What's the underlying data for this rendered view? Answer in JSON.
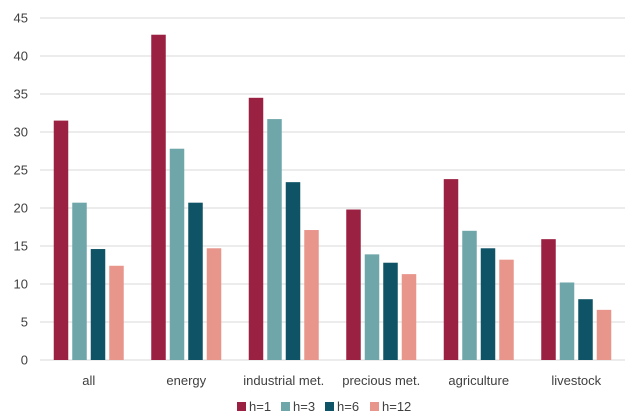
{
  "chart_data": {
    "type": "bar",
    "categories": [
      "all",
      "energy",
      "industrial met.",
      "precious met.",
      "agriculture",
      "livestock"
    ],
    "series": [
      {
        "name": "h=1",
        "color": "#9b2143",
        "values": [
          31.5,
          42.8,
          34.5,
          19.8,
          23.8,
          15.9
        ]
      },
      {
        "name": "h=3",
        "color": "#6fa6aa",
        "values": [
          20.7,
          27.8,
          31.7,
          13.9,
          17.0,
          10.2
        ]
      },
      {
        "name": "h=6",
        "color": "#0f5367",
        "values": [
          14.6,
          20.7,
          23.4,
          12.8,
          14.7,
          8.0
        ]
      },
      {
        "name": "h=12",
        "color": "#e8958c",
        "values": [
          12.4,
          14.7,
          17.1,
          11.3,
          13.2,
          6.6
        ]
      }
    ],
    "title": "",
    "xlabel": "",
    "ylabel": "",
    "ylim": [
      0,
      45
    ],
    "yticks": [
      0,
      5,
      10,
      15,
      20,
      25,
      30,
      35,
      40,
      45
    ],
    "grid": true,
    "legend_position": "bottom"
  }
}
